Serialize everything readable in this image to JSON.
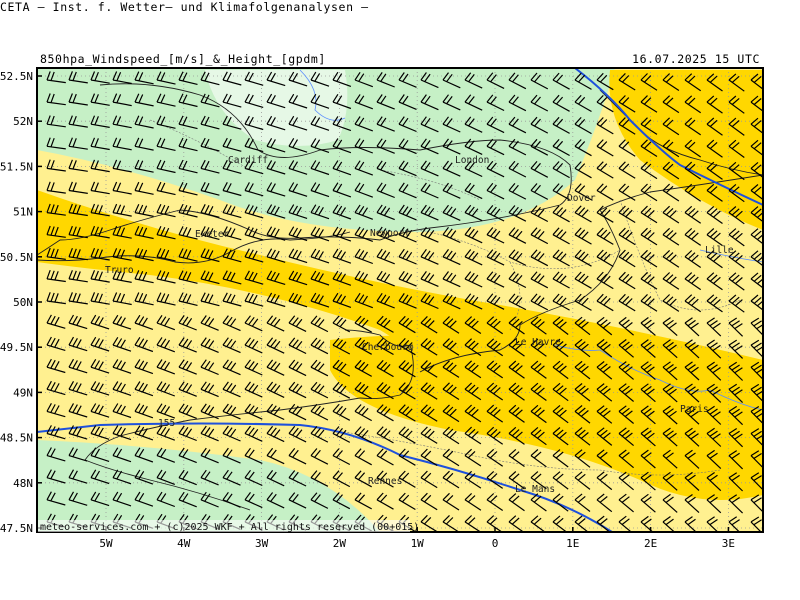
{
  "header": {
    "title": "CETA – Inst. f. Wetter– und Klimafolgenanalysen –",
    "parameter": "850hpa_Windspeed_[m/s]_&_Height_[gpdm]",
    "datetime": "16.07.2025 15 UTC"
  },
  "map": {
    "lat_labels": [
      "52.5N",
      "52N",
      "51.5N",
      "51N",
      "50.5N",
      "50N",
      "49.5N",
      "49N",
      "48.5N",
      "48N",
      "47.5N"
    ],
    "lon_labels": [
      "5W",
      "4W",
      "3W",
      "2W",
      "1W",
      "0",
      "1E",
      "2E",
      "3E"
    ],
    "cities": [
      "Cardiff",
      "London",
      "Dover",
      "Exeter",
      "Newport",
      "Lille",
      "Truro",
      "Le Havre",
      "Cherbourg",
      "Paris",
      "Rennes",
      "Le Mans"
    ],
    "contour_label": "155",
    "credit": "meteo-services.com + (c)2025 WKF + All rights reserved (00+015)",
    "colors": {
      "speed_lt5": "#e6f8e6",
      "speed_5_10": "#c6f0c6",
      "speed_10_15": "#fff090",
      "speed_15_20": "#ffd700",
      "height_contour": "#1e50dc"
    }
  }
}
